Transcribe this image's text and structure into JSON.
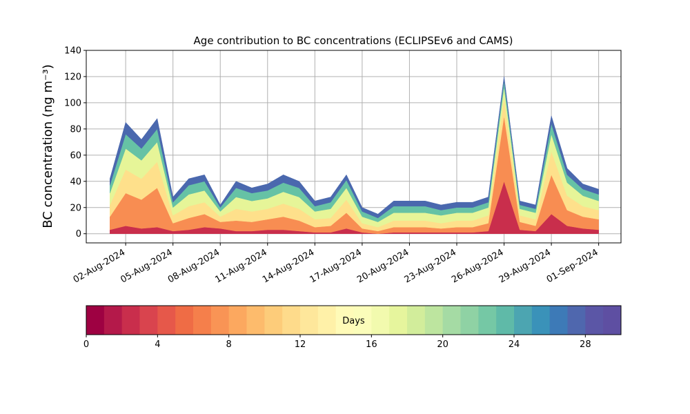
{
  "chart_data": {
    "type": "stackplot",
    "title": "Age contribution to BC concentrations (ECLIPSEv6 and CAMS)",
    "ylabel": "BC concentration (ng m⁻³)",
    "x": [
      "2024-08-01",
      "2024-08-02",
      "2024-08-03",
      "2024-08-04",
      "2024-08-05",
      "2024-08-06",
      "2024-08-07",
      "2024-08-08",
      "2024-08-09",
      "2024-08-10",
      "2024-08-11",
      "2024-08-12",
      "2024-08-13",
      "2024-08-14",
      "2024-08-15",
      "2024-08-16",
      "2024-08-17",
      "2024-08-18",
      "2024-08-19",
      "2024-08-20",
      "2024-08-21",
      "2024-08-22",
      "2024-08-23",
      "2024-08-24",
      "2024-08-25",
      "2024-08-26",
      "2024-08-27",
      "2024-08-28",
      "2024-08-29",
      "2024-08-30",
      "2024-08-31",
      "2024-09-01"
    ],
    "series": [
      {
        "color": "#c92e4c",
        "values": [
          3,
          6,
          4,
          5,
          2,
          3,
          5,
          4,
          2,
          2,
          3,
          3,
          2,
          1,
          1,
          4,
          1,
          0,
          1,
          1,
          1,
          1,
          1,
          1,
          2,
          40,
          3,
          2,
          15,
          6,
          4,
          3
        ]
      },
      {
        "color": "#f88d52",
        "values": [
          10,
          25,
          22,
          30,
          6,
          9,
          10,
          5,
          8,
          7,
          8,
          10,
          8,
          4,
          5,
          12,
          3,
          2,
          4,
          4,
          4,
          3,
          4,
          4,
          6,
          50,
          6,
          4,
          30,
          12,
          9,
          8
        ]
      },
      {
        "color": "#fee08b",
        "values": [
          9,
          18,
          16,
          20,
          6,
          9,
          9,
          4,
          9,
          8,
          8,
          10,
          9,
          6,
          6,
          10,
          4,
          3,
          5,
          5,
          5,
          4,
          5,
          5,
          6,
          14,
          5,
          5,
          18,
          11,
          8,
          7
        ]
      },
      {
        "color": "#e6f598",
        "values": [
          9,
          16,
          14,
          15,
          6,
          9,
          9,
          4,
          9,
          8,
          8,
          9,
          9,
          6,
          7,
          9,
          5,
          4,
          6,
          6,
          6,
          6,
          6,
          6,
          6,
          8,
          5,
          5,
          13,
          10,
          8,
          7
        ]
      },
      {
        "color": "#66c2a5",
        "values": [
          6,
          11,
          9,
          10,
          4,
          7,
          7,
          3,
          7,
          6,
          6,
          7,
          7,
          4,
          5,
          6,
          4,
          3,
          5,
          5,
          5,
          4,
          4,
          4,
          4,
          5,
          3,
          3,
          8,
          6,
          5,
          5
        ]
      },
      {
        "color": "#4a68ae",
        "values": [
          5,
          9,
          7,
          8,
          4,
          5,
          5,
          2,
          5,
          4,
          5,
          6,
          5,
          4,
          4,
          4,
          3,
          3,
          4,
          4,
          4,
          4,
          4,
          4,
          4,
          3,
          3,
          3,
          6,
          5,
          4,
          4
        ]
      }
    ],
    "xlim": [
      "2024-07-30T12:00",
      "2024-09-02T10:00"
    ],
    "xticks": [
      {
        "value": "2024-08-02",
        "label": "02-Aug-2024"
      },
      {
        "value": "2024-08-05",
        "label": "05-Aug-2024"
      },
      {
        "value": "2024-08-08",
        "label": "08-Aug-2024"
      },
      {
        "value": "2024-08-11",
        "label": "11-Aug-2024"
      },
      {
        "value": "2024-08-14",
        "label": "14-Aug-2024"
      },
      {
        "value": "2024-08-17",
        "label": "17-Aug-2024"
      },
      {
        "value": "2024-08-20",
        "label": "20-Aug-2024"
      },
      {
        "value": "2024-08-23",
        "label": "23-Aug-2024"
      },
      {
        "value": "2024-08-26",
        "label": "26-Aug-2024"
      },
      {
        "value": "2024-08-29",
        "label": "29-Aug-2024"
      },
      {
        "value": "2024-09-01",
        "label": "01-Sep-2024"
      }
    ],
    "ylim": [
      -7,
      140
    ],
    "yticks": [
      0,
      20,
      40,
      60,
      80,
      100,
      120,
      140
    ],
    "grid": true,
    "colorbar": {
      "label": "Days",
      "lim": [
        0,
        30
      ],
      "ticks": [
        0,
        4,
        8,
        12,
        16,
        20,
        24,
        28
      ],
      "colors": [
        "#9e0142",
        "#b4194a",
        "#c92e4c",
        "#d9444e",
        "#e6584a",
        "#ef6c45",
        "#f57f4b",
        "#f99455",
        "#fca85f",
        "#fdbb6c",
        "#fdcc7a",
        "#fedb8b",
        "#fee79b",
        "#fff1a8",
        "#fffbb8",
        "#fbfdba",
        "#f2faae",
        "#e6f59d",
        "#d2ed9b",
        "#bde59f",
        "#a5dba4",
        "#8fd2a4",
        "#75c8a5",
        "#5fbaa8",
        "#4ca5b1",
        "#3a92b9",
        "#3d7ab7",
        "#4f67ae",
        "#5b56a6",
        "#5e4fa2"
      ]
    }
  }
}
